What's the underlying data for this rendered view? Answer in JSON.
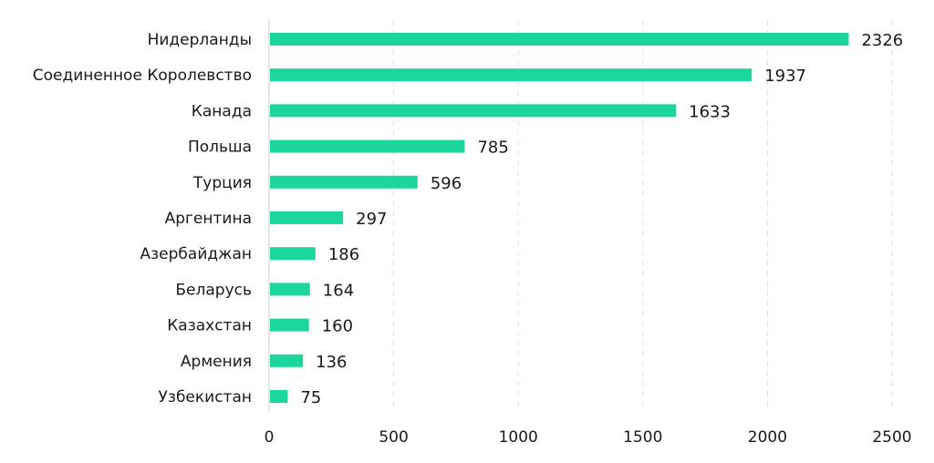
{
  "chart_data": {
    "type": "bar",
    "orientation": "horizontal",
    "categories": [
      "Нидерланды",
      "Соединенное Королевство",
      "Канада",
      "Польша",
      "Турция",
      "Аргентина",
      "Азербайджан",
      "Беларусь",
      "Казахстан",
      "Армения",
      "Узбекистан"
    ],
    "values": [
      2326,
      1937,
      1633,
      785,
      596,
      297,
      186,
      164,
      160,
      136,
      75
    ],
    "xlim": [
      0,
      2500
    ],
    "xticks": [
      0,
      500,
      1000,
      1500,
      2000,
      2500
    ],
    "grid": "vertical dashed",
    "legend": "none",
    "colors": {
      "bar": "#1dd69e",
      "grid": "#e0e0e0",
      "axis": "#cccccc",
      "text": "#1a1a1a"
    }
  }
}
